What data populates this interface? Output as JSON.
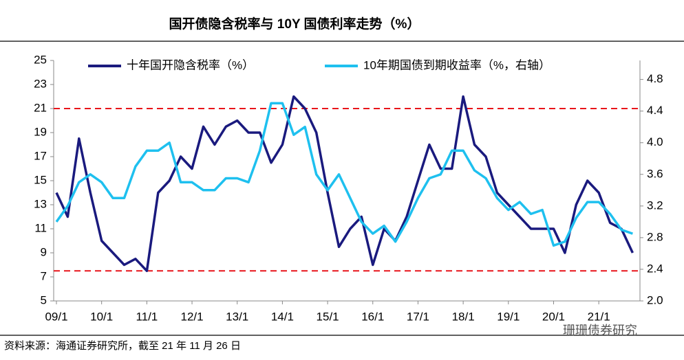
{
  "chart_data": {
    "type": "line",
    "title": "国开债隐含税率与 10Y 国债利率走势（%）",
    "source": "资料来源：海通证券研究所，截至 21 年 11 月 26 日",
    "watermark": "珊珊债券研究",
    "categories": [
      "09/1",
      null,
      null,
      null,
      "10/1",
      null,
      null,
      null,
      "11/1",
      null,
      null,
      null,
      "12/1",
      null,
      null,
      null,
      "13/1",
      null,
      null,
      null,
      "14/1",
      null,
      null,
      null,
      "15/1",
      null,
      null,
      null,
      "16/1",
      null,
      null,
      null,
      "17/1",
      null,
      null,
      null,
      "18/1",
      null,
      null,
      null,
      "19/1",
      null,
      null,
      null,
      "20/1",
      null,
      null,
      null,
      "21/1",
      null,
      null,
      null
    ],
    "series": [
      {
        "name": "十年国开隐含税率（%）",
        "color": "#1a1a7e",
        "values": [
          14,
          12,
          18.5,
          14,
          10,
          9,
          8,
          8.5,
          7.5,
          14,
          15,
          17,
          16,
          19.5,
          18,
          19.5,
          20,
          19,
          19,
          16.5,
          18,
          22,
          21,
          19,
          14,
          9.5,
          11,
          12,
          8,
          11,
          10,
          12,
          15,
          18,
          16,
          16,
          22,
          18,
          17,
          14,
          13,
          12,
          11,
          11,
          11,
          9,
          13,
          15,
          14,
          11.5,
          11,
          9
        ]
      },
      {
        "name": "10年期国债到期收益率（%，右轴）",
        "color": "#1ec0ef",
        "axis": "y2",
        "values": [
          3.0,
          3.2,
          3.5,
          3.6,
          3.5,
          3.3,
          3.3,
          3.7,
          3.9,
          3.9,
          4.0,
          3.5,
          3.5,
          3.4,
          3.4,
          3.55,
          3.55,
          3.5,
          3.9,
          4.5,
          4.5,
          4.1,
          4.2,
          3.6,
          3.4,
          3.6,
          3.3,
          3.0,
          2.85,
          2.95,
          2.75,
          3.0,
          3.3,
          3.55,
          3.6,
          3.9,
          3.9,
          3.65,
          3.55,
          3.3,
          3.15,
          3.25,
          3.1,
          3.15,
          2.7,
          2.75,
          3.05,
          3.25,
          3.25,
          3.1,
          2.9,
          2.85
        ]
      }
    ],
    "ylim": [
      5,
      25
    ],
    "yticks": [
      5,
      7,
      9,
      11,
      13,
      15,
      17,
      19,
      21,
      23,
      25
    ],
    "y2lim": [
      2.0,
      5.04
    ],
    "y2ticks": [
      2.0,
      2.4,
      2.8,
      3.2,
      3.6,
      4.0,
      4.4,
      4.8
    ],
    "reference_lines": [
      21,
      7.5
    ],
    "reference_color": "#e8141a",
    "grid": false,
    "legend": "top"
  }
}
